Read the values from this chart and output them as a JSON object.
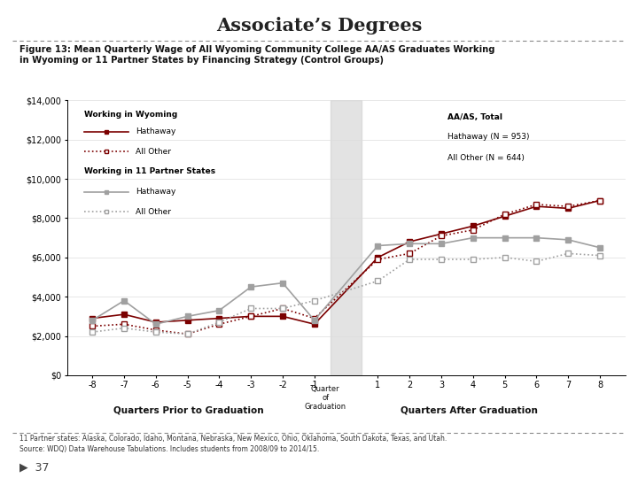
{
  "title": "Associate’s Degrees",
  "figure_label": "Figure 13: Mean Quarterly Wage of All Wyoming Community College AA/AS Graduates Working\nin Wyoming or 11 Partner States by Financing Strategy (Control Groups)",
  "footnote1": "11 Partner states: Alaska, Colorado, Idaho, Montana, Nebraska, New Mexico, Ohio, Oklahoma, South Dakota, Texas, and Utah.",
  "footnote2": "Source: WDQ) Data Warehouse Tabulations. Includes students from 2008/09 to 2014/15.",
  "page_number": "37",
  "quarters": [
    -8,
    -7,
    -6,
    -5,
    -4,
    -3,
    -2,
    -1,
    1,
    2,
    3,
    4,
    5,
    6,
    7,
    8
  ],
  "wy_hathaway": [
    2900,
    3100,
    2700,
    2800,
    2900,
    3000,
    3000,
    2600,
    6000,
    6800,
    7200,
    7600,
    8100,
    8600,
    8500,
    8900
  ],
  "wy_allother": [
    2500,
    2600,
    2300,
    2100,
    2600,
    3000,
    3400,
    2900,
    5900,
    6200,
    7100,
    7400,
    8200,
    8700,
    8600,
    8900
  ],
  "ps_hathaway": [
    2800,
    3800,
    2600,
    3000,
    3300,
    4500,
    4700,
    2800,
    6600,
    6700,
    6700,
    7000,
    7000,
    7000,
    6900,
    6500
  ],
  "ps_allother": [
    2200,
    2400,
    2200,
    2100,
    2700,
    3400,
    3400,
    3800,
    4800,
    5900,
    5900,
    5900,
    6000,
    5800,
    6200,
    6100
  ],
  "wy_hathaway_color": "#7B0000",
  "wy_allother_color": "#7B0000",
  "ps_hathaway_color": "#A0A0A0",
  "ps_allother_color": "#A0A0A0",
  "ylim": [
    0,
    14000
  ],
  "yticks": [
    0,
    2000,
    4000,
    6000,
    8000,
    10000,
    12000,
    14000
  ],
  "ytick_labels": [
    "$0",
    "$2,000",
    "$4,000",
    "$6,000",
    "$8,000",
    "$10,000",
    "$12,000",
    "$14,000"
  ],
  "legend1_title": "Working in Wyoming",
  "legend1_line1": "Hathaway",
  "legend1_line2": "All Other",
  "legend2_title": "Working in 11 Partner States",
  "legend2_line1": "Hathaway",
  "legend2_line2": "All Other",
  "box_title": "AA/AS, Total",
  "box_line1": "Hathaway (N = 953)",
  "box_line2": "All Other (N = 644)"
}
